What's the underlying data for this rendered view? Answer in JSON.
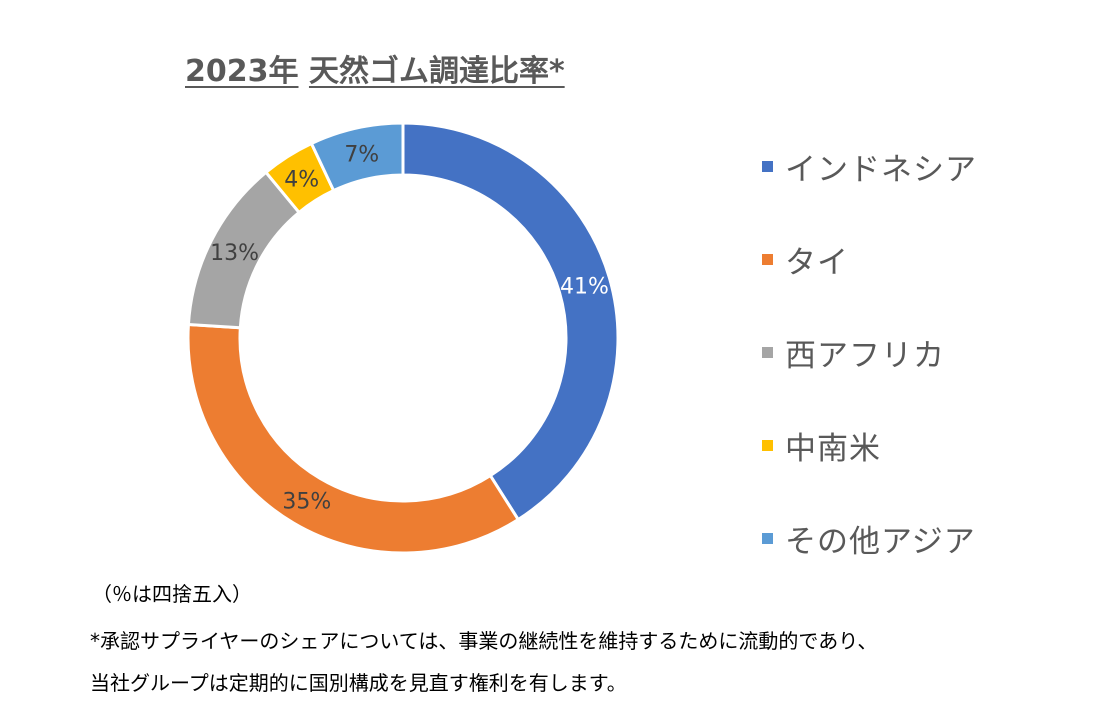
{
  "chart_data": {
    "type": "pie",
    "variant": "donut",
    "title_year": "2023年",
    "title": "天然ゴム調達比率*",
    "categories": [
      "インドネシア",
      "タイ",
      "西アフリカ",
      "中南米",
      "その他アジア"
    ],
    "values": [
      41,
      35,
      13,
      4,
      7
    ],
    "labels": [
      "41%",
      "35%",
      "13%",
      "4%",
      "7%"
    ],
    "colors": [
      "#4472C4",
      "#ED7D31",
      "#A5A5A5",
      "#FFC000",
      "#5B9BD5"
    ],
    "label_colors": [
      "#FFFFFF",
      "#404040",
      "#404040",
      "#404040",
      "#404040"
    ],
    "legend_position": "right"
  },
  "notes": {
    "rounding": "（％は四捨五入）",
    "footnote_line1": "*承認サプライヤーのシェアについては、事業の継続性を維持するために流動的であり、",
    "footnote_line2": "当社グループは定期的に国別構成を見直す権利を有します。"
  }
}
